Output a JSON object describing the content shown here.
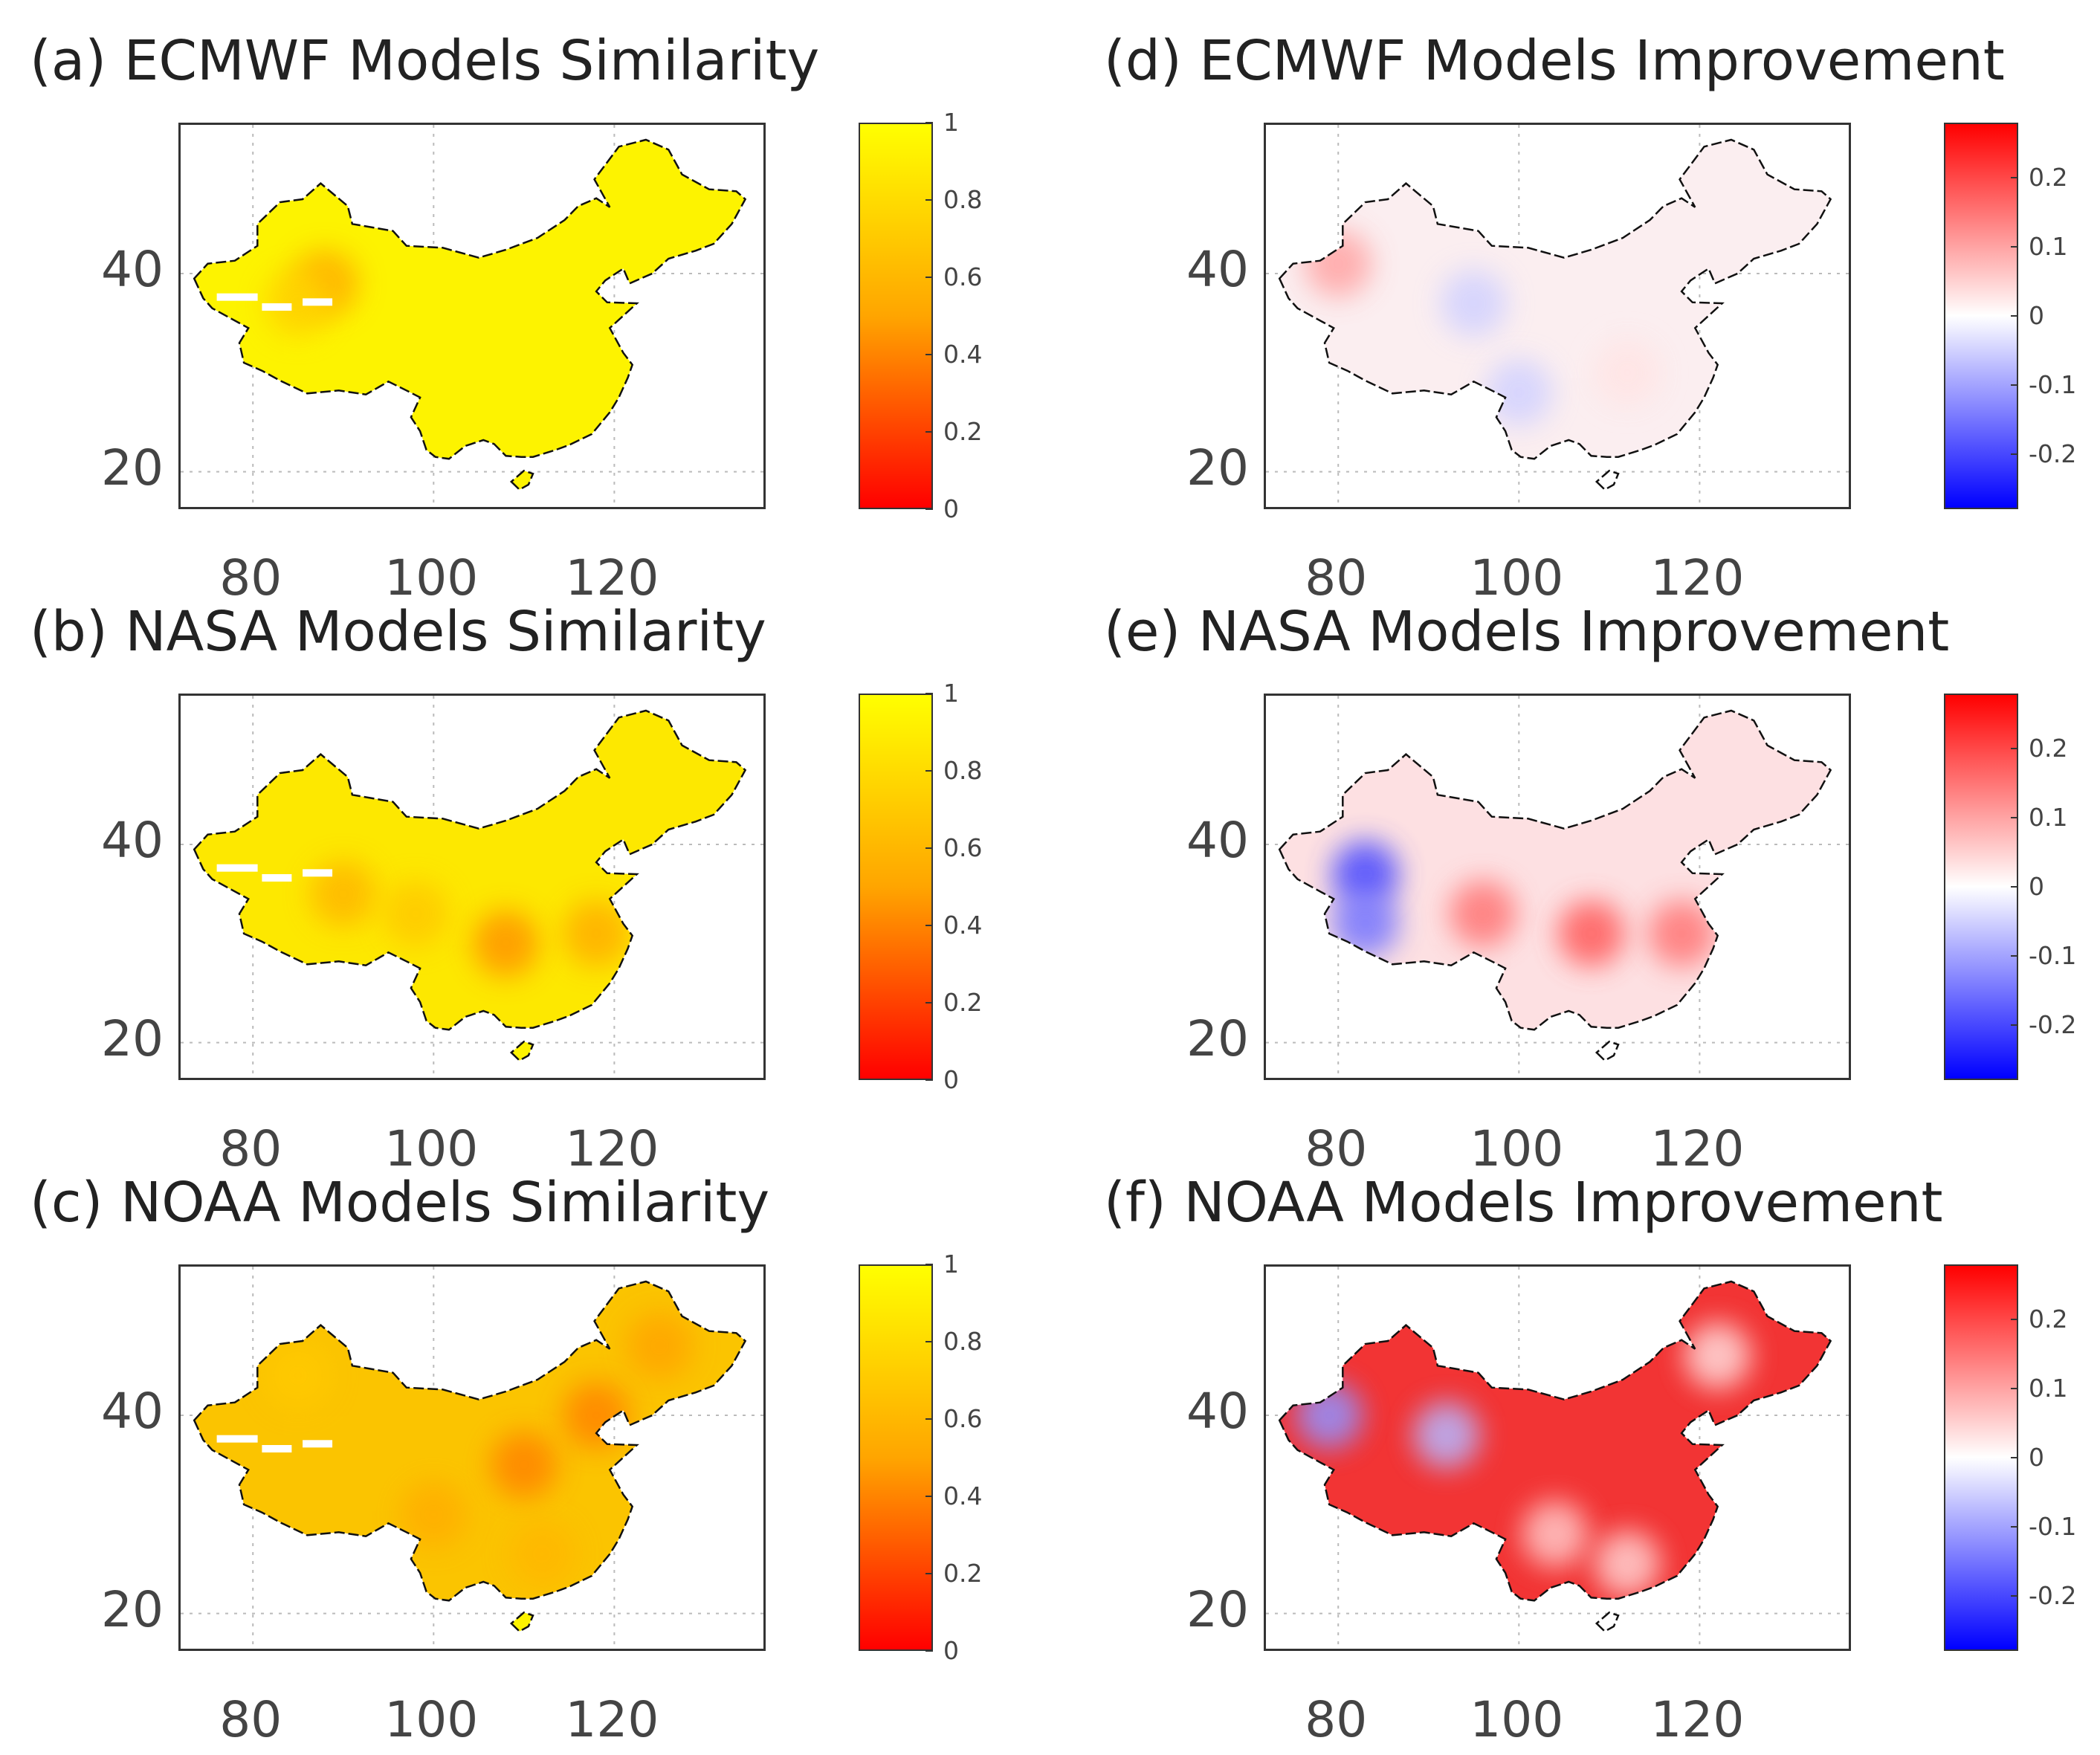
{
  "panels": [
    {
      "id": "a",
      "title": "(a) ECMWF Models Similarity",
      "type": "similarity",
      "x_ticks": [
        "80",
        "100",
        "120"
      ],
      "y_ticks": [
        "40",
        "20"
      ],
      "colorbar": {
        "ticks": [
          "1",
          "0.8",
          "0.6",
          "0.4",
          "0.2",
          "0"
        ],
        "colors": [
          "#ffff00",
          "#ffa500",
          "#ff0000"
        ],
        "range": [
          0,
          1
        ]
      },
      "base_color": "#fdf300",
      "patches": [
        {
          "lon": 88,
          "lat": 39,
          "value": 0.55
        },
        {
          "lon": 85,
          "lat": 37,
          "value": 0.75
        }
      ]
    },
    {
      "id": "b",
      "title": "(b) NASA Models Similarity",
      "type": "similarity",
      "x_ticks": [
        "80",
        "100",
        "120"
      ],
      "y_ticks": [
        "40",
        "20"
      ],
      "colorbar": {
        "ticks": [
          "1",
          "0.8",
          "0.6",
          "0.4",
          "0.2",
          "0"
        ],
        "colors": [
          "#ffff00",
          "#ffa500",
          "#ff0000"
        ],
        "range": [
          0,
          1
        ]
      },
      "base_color": "#fde800",
      "patches": [
        {
          "lon": 90,
          "lat": 35,
          "value": 0.6
        },
        {
          "lon": 108,
          "lat": 30,
          "value": 0.45
        },
        {
          "lon": 118,
          "lat": 31,
          "value": 0.55
        },
        {
          "lon": 98,
          "lat": 33,
          "value": 0.7
        }
      ]
    },
    {
      "id": "c",
      "title": "(c) NOAA Models Similarity",
      "type": "similarity",
      "x_ticks": [
        "80",
        "100",
        "120"
      ],
      "y_ticks": [
        "40",
        "20"
      ],
      "colorbar": {
        "ticks": [
          "1",
          "0.8",
          "0.6",
          "0.4",
          "0.2",
          "0"
        ],
        "colors": [
          "#ffff00",
          "#ffa500",
          "#ff0000"
        ],
        "range": [
          0,
          1
        ]
      },
      "base_color": "#fbc400",
      "patches": [
        {
          "lon": 110,
          "lat": 35,
          "value": 0.4
        },
        {
          "lon": 118,
          "lat": 40,
          "value": 0.4
        },
        {
          "lon": 125,
          "lat": 47,
          "value": 0.5
        },
        {
          "lon": 100,
          "lat": 30,
          "value": 0.55
        },
        {
          "lon": 85,
          "lat": 44,
          "value": 0.7
        },
        {
          "lon": 112,
          "lat": 26,
          "value": 0.6
        }
      ]
    },
    {
      "id": "d",
      "title": "(d) ECMWF Models Improvement",
      "type": "improvement",
      "x_ticks": [
        "80",
        "100",
        "120"
      ],
      "y_ticks": [
        "40",
        "20"
      ],
      "colorbar": {
        "ticks": [
          "0.2",
          "0.1",
          "0",
          "-0.1",
          "-0.2"
        ],
        "colors": [
          "#ff0000",
          "#ffffff",
          "#0000ff"
        ],
        "range": [
          -0.28,
          0.28
        ]
      },
      "base_color": "#fbeef0",
      "patches": [
        {
          "lon": 80,
          "lat": 41,
          "value": 0.1
        },
        {
          "lon": 95,
          "lat": 37,
          "value": -0.05
        },
        {
          "lon": 100,
          "lat": 28,
          "value": -0.05
        },
        {
          "lon": 112,
          "lat": 30,
          "value": 0.03
        }
      ]
    },
    {
      "id": "e",
      "title": "(e) NASA Models Improvement",
      "type": "improvement",
      "x_ticks": [
        "80",
        "100",
        "120"
      ],
      "y_ticks": [
        "40",
        "20"
      ],
      "colorbar": {
        "ticks": [
          "0.2",
          "0.1",
          "0",
          "-0.1",
          "-0.2"
        ],
        "colors": [
          "#ff0000",
          "#ffffff",
          "#0000ff"
        ],
        "range": [
          -0.28,
          0.28
        ]
      },
      "base_color": "#fde0e2",
      "patches": [
        {
          "lon": 83,
          "lat": 37,
          "value": -0.2
        },
        {
          "lon": 83,
          "lat": 32,
          "value": -0.15
        },
        {
          "lon": 96,
          "lat": 33,
          "value": 0.15
        },
        {
          "lon": 108,
          "lat": 31,
          "value": 0.18
        },
        {
          "lon": 118,
          "lat": 31,
          "value": 0.15
        }
      ]
    },
    {
      "id": "f",
      "title": "(f) NOAA Models Improvement",
      "type": "improvement",
      "x_ticks": [
        "80",
        "100",
        "120"
      ],
      "y_ticks": [
        "40",
        "20"
      ],
      "colorbar": {
        "ticks": [
          "0.2",
          "0.1",
          "0",
          "-0.1",
          "-0.2"
        ],
        "colors": [
          "#ff0000",
          "#ffffff",
          "#0000ff"
        ],
        "range": [
          -0.28,
          0.28
        ]
      },
      "base_color": "#f23434",
      "patches": [
        {
          "lon": 79,
          "lat": 40,
          "value": -0.12
        },
        {
          "lon": 92,
          "lat": 38,
          "value": -0.08
        },
        {
          "lon": 122,
          "lat": 46,
          "value": 0.04
        },
        {
          "lon": 104,
          "lat": 28,
          "value": 0.06
        },
        {
          "lon": 112,
          "lat": 25,
          "value": 0.05
        }
      ]
    }
  ]
}
